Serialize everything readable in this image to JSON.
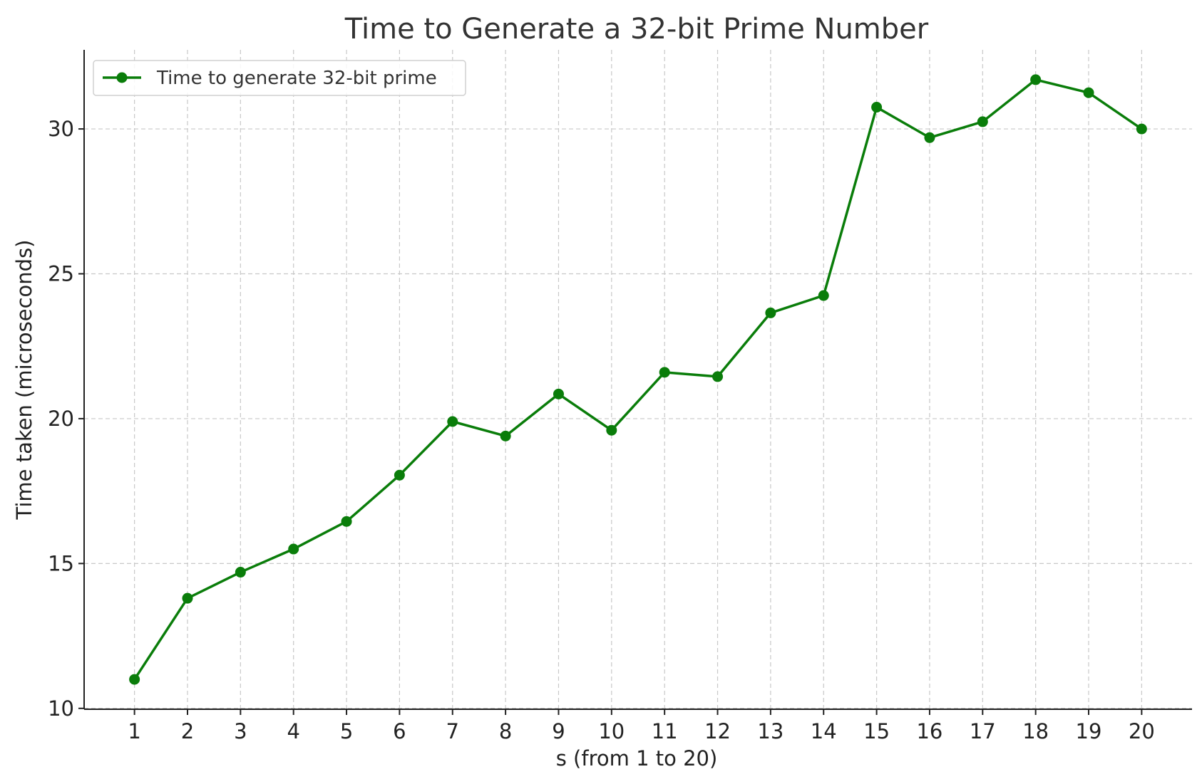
{
  "chart_data": {
    "type": "line",
    "title": "Time to Generate a 32-bit Prime Number",
    "xlabel": "s (from 1 to 20)",
    "ylabel": "Time taken (microseconds)",
    "x": [
      1,
      2,
      3,
      4,
      5,
      6,
      7,
      8,
      9,
      10,
      11,
      12,
      13,
      14,
      15,
      16,
      17,
      18,
      19,
      20
    ],
    "x_ticks": [
      "1",
      "2",
      "3",
      "4",
      "5",
      "6",
      "7",
      "8",
      "9",
      "10",
      "11",
      "12",
      "13",
      "14",
      "15",
      "16",
      "17",
      "18",
      "19",
      "20"
    ],
    "y_ticks": [
      "10",
      "15",
      "20",
      "25",
      "30"
    ],
    "xlim": [
      0.05,
      20.95
    ],
    "ylim": [
      9.97,
      32.73
    ],
    "grid": true,
    "legend_position": "top-left",
    "series": [
      {
        "name": "Time to generate 32-bit prime",
        "color": "#0a7d0a",
        "marker": "circle",
        "values": [
          11.0,
          13.8,
          14.7,
          15.5,
          16.45,
          18.05,
          19.9,
          19.4,
          20.85,
          19.6,
          21.6,
          21.45,
          23.65,
          24.25,
          30.75,
          29.7,
          30.25,
          31.7,
          31.25,
          30.0
        ]
      }
    ]
  }
}
